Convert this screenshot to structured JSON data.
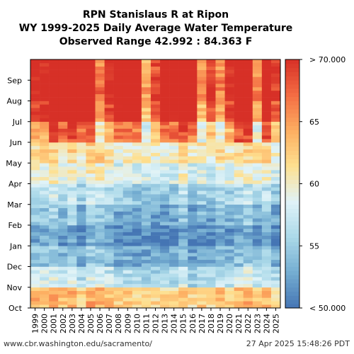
{
  "chart_data": {
    "type": "heatmap",
    "title_lines": [
      "RPN Stanislaus R at Ripon",
      "WY 1999-2025 Daily Average Water Temperature",
      "Observed Range 42.992 : 84.363 F"
    ],
    "x_categories": [
      "1999",
      "2000",
      "2001",
      "2002",
      "2003",
      "2004",
      "2005",
      "2006",
      "2007",
      "2008",
      "2009",
      "2010",
      "2011",
      "2012",
      "2013",
      "2014",
      "2015",
      "2016",
      "2017",
      "2018",
      "2019",
      "2020",
      "2021",
      "2022",
      "2023",
      "2024",
      "2025"
    ],
    "y_months": [
      "Oct",
      "Nov",
      "Dec",
      "Jan",
      "Feb",
      "Mar",
      "Apr",
      "May",
      "Jun",
      "Jul",
      "Aug",
      "Sep"
    ],
    "value_range": [
      50,
      70
    ],
    "units": "F",
    "colorbar": {
      "ticks": [
        {
          "value": 70,
          "label": "> 70.000"
        },
        {
          "value": 65,
          "label": "65"
        },
        {
          "value": 60,
          "label": "60"
        },
        {
          "value": 55,
          "label": "55"
        },
        {
          "value": 50,
          "label": "< 50.000"
        }
      ],
      "colors": [
        "#4575b4",
        "#74add1",
        "#abd9e9",
        "#e0f3f8",
        "#fee090",
        "#fdae61",
        "#f46d43",
        "#d73027"
      ]
    },
    "monthly_typical_values": [
      63,
      57,
      54,
      52,
      54,
      56,
      59,
      61,
      64,
      69,
      71,
      70
    ],
    "hot_summer_years": [
      "2001",
      "2002",
      "2003",
      "2004",
      "2005",
      "2008",
      "2009",
      "2010",
      "2013",
      "2014",
      "2015",
      "2016",
      "2021",
      "2022",
      "2024"
    ],
    "cool_years": [
      "2006",
      "2011",
      "2017",
      "2019",
      "2023"
    ],
    "grid": false
  },
  "footer": {
    "left": "www.cbr.washington.edu/sacramento/",
    "right": "27 Apr 2025 15:48:26 PDT"
  }
}
